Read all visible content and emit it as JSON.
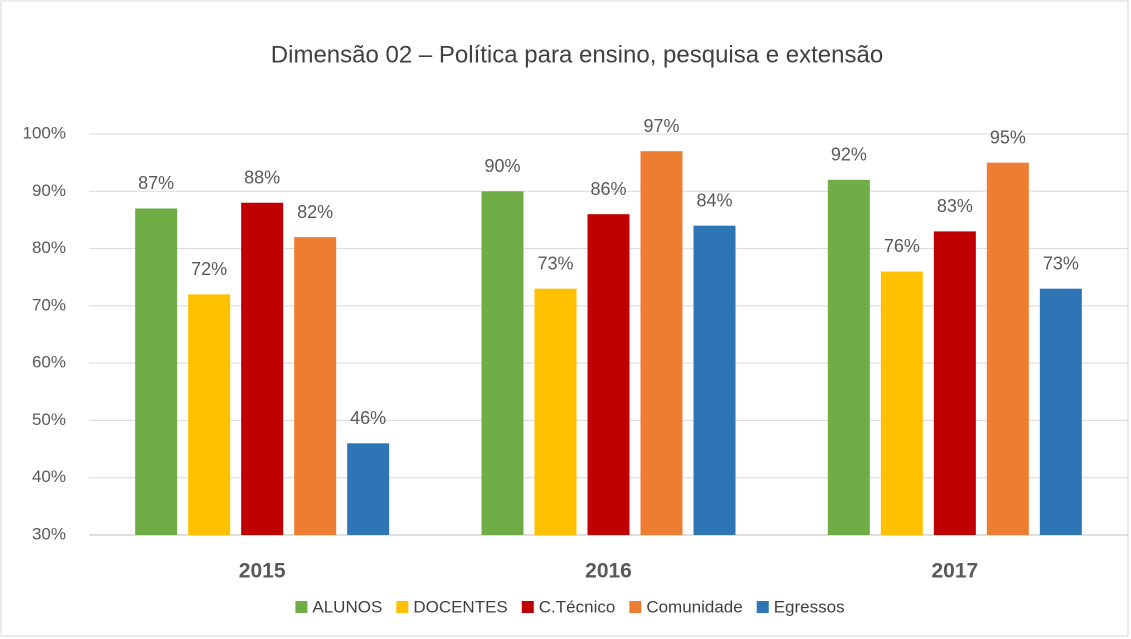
{
  "chart_data": {
    "type": "bar",
    "title": "Dimensão 02 – Política para ensino, pesquisa e extensão",
    "categories": [
      "2015",
      "2016",
      "2017"
    ],
    "series": [
      {
        "name": "ALUNOS",
        "color": "#70ad47",
        "values": [
          87,
          90,
          92
        ],
        "value_labels": [
          "87%",
          "90%",
          "92%"
        ]
      },
      {
        "name": "DOCENTES",
        "color": "#ffc000",
        "values": [
          72,
          73,
          76
        ],
        "value_labels": [
          "72%",
          "73%",
          "76%"
        ]
      },
      {
        "name": "C.Técnico",
        "color": "#c00000",
        "values": [
          88,
          86,
          83
        ],
        "value_labels": [
          "88%",
          "86%",
          "83%"
        ]
      },
      {
        "name": "Comunidade",
        "color": "#ed7d31",
        "values": [
          82,
          97,
          95
        ],
        "value_labels": [
          "82%",
          "97%",
          "95%"
        ]
      },
      {
        "name": "Egressos",
        "color": "#2e75b6",
        "values": [
          46,
          84,
          73
        ],
        "value_labels": [
          "46%",
          "84%",
          "73%"
        ]
      }
    ],
    "ylim": [
      30,
      100
    ],
    "yticks": [
      {
        "value": 30,
        "label": "30%"
      },
      {
        "value": 40,
        "label": "40%"
      },
      {
        "value": 50,
        "label": "50%"
      },
      {
        "value": 60,
        "label": "60%"
      },
      {
        "value": 70,
        "label": "70%"
      },
      {
        "value": 80,
        "label": "80%"
      },
      {
        "value": 90,
        "label": "90%"
      },
      {
        "value": 100,
        "label": "100%"
      }
    ],
    "grid": true,
    "legend": "bottom"
  }
}
